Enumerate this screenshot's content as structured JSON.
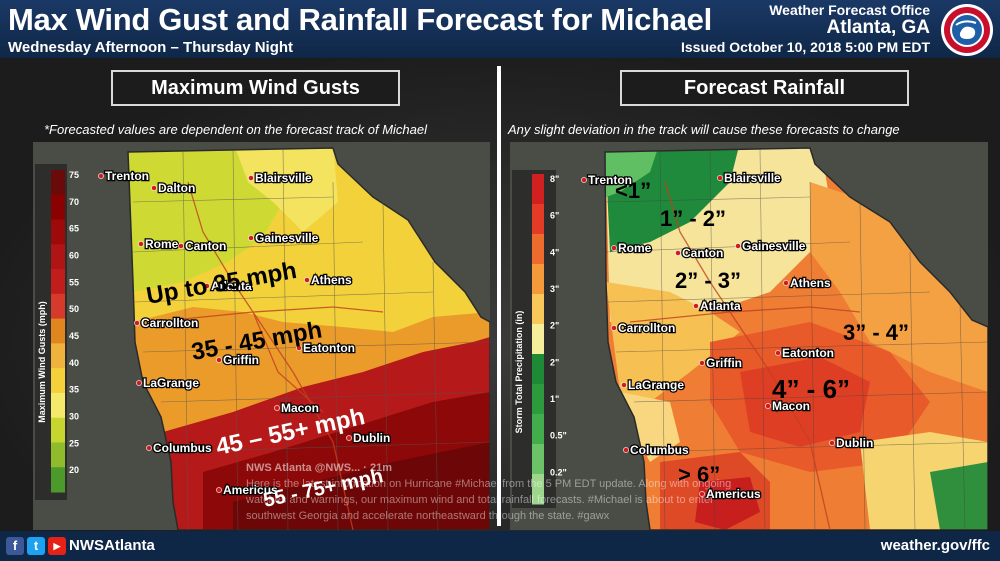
{
  "header": {
    "title": "Max Wind Gust and Rainfall Forecast for Michael",
    "subtitle": "Wednesday Afternoon – Thursday Night",
    "office_line1": "Weather Forecast Office",
    "office_city": "Atlanta, GA",
    "issued": "Issued October 10, 2018 5:00 PM EDT",
    "logo_text": "NATIONAL WEATHER SERVICE"
  },
  "wind_panel": {
    "title": "Maximum Wind Gusts",
    "note": "*Forecasted values are dependent on the forecast track of Michael",
    "colorbar_title": "Maximum Wind Gusts (mph)",
    "colorbar_ticks": [
      "75",
      "70",
      "65",
      "60",
      "55",
      "50",
      "45",
      "40",
      "35",
      "30",
      "25",
      "20"
    ],
    "colorbar_colors": [
      "#6b0a0a",
      "#8b0000",
      "#9e0a0a",
      "#b01414",
      "#c21d1d",
      "#d63a2a",
      "#e0861f",
      "#efb23d",
      "#f5d03a",
      "#f4e96a",
      "#c7d52f",
      "#8fbb2c",
      "#4b9a2b"
    ],
    "annotations": [
      "Up to 35 mph",
      "35 - 45 mph",
      "45 – 55+ mph",
      "55 - 75+ mph"
    ],
    "cities": [
      "Trenton",
      "Dalton",
      "Blairsville",
      "Rome",
      "Canton",
      "Gainesville",
      "Athens",
      "Atlanta",
      "Carrollton",
      "Eatonton",
      "Griffin",
      "LaGrange",
      "Macon",
      "Dublin",
      "Columbus",
      "Americus"
    ]
  },
  "rain_panel": {
    "title": "Forecast Rainfall",
    "note": "Any slight deviation in the track will cause these forecasts to change",
    "colorbar_title": "Storm Total Precipitation (in)",
    "colorbar_ticks": [
      "8\"",
      "6\"",
      "4\"",
      "3\"",
      "2\"",
      "2\"",
      "1\"",
      "0.5\"",
      "0.2\""
    ],
    "colorbar_colors": [
      "#d0201f",
      "#e33b25",
      "#ee6b2e",
      "#f59a3a",
      "#f8c85a",
      "#f5ef9c",
      "#1e8a36",
      "#2d9a3e",
      "#43ad4e",
      "#6cc267",
      "#9fd68d"
    ],
    "annotations": [
      "<1”",
      "1” - 2”",
      "2” - 3”",
      "3” - 4”",
      "4” - 6”",
      "> 6”"
    ],
    "cities": [
      "Trenton",
      "Blairsville",
      "Rome",
      "Canton",
      "Gainesville",
      "Athens",
      "Atlanta",
      "Carrollton",
      "Eatonton",
      "Griffin",
      "LaGrange",
      "Macon",
      "Dublin",
      "Columbus",
      "Americus"
    ]
  },
  "tweet": {
    "author": "NWS Atlanta",
    "handle": "@NWS...",
    "time": "21m",
    "text": "Here is the latest information on Hurricane #Michael from the 5 PM EDT update. Along with ongoing watches and warnings, our maximum wind and total rainfall forecasts. #Michael is about to enter southwest Georgia and accelerate northeastward through the state. #gawx"
  },
  "footer": {
    "facebook_icon": "f",
    "twitter_icon": "t",
    "youtube_icon": "▶",
    "handle": "NWSAtlanta",
    "website": "weather.gov/ffc"
  },
  "colors": {
    "header_bg": "#1b3966",
    "footer_bg": "#0f2747",
    "panel_border": "#d9d9d9"
  }
}
